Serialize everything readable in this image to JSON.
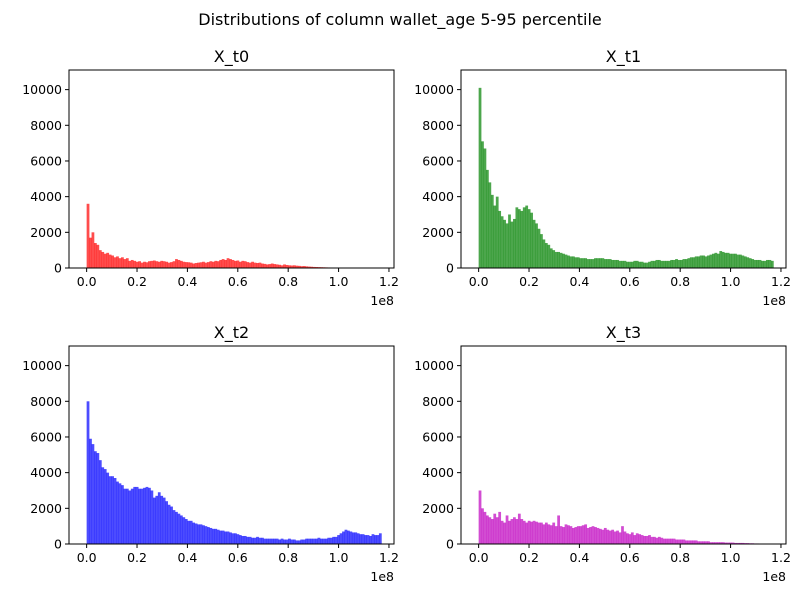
{
  "chart_data": {
    "type": "histogram",
    "title": "Distributions of column wallet_age 5-95 percentile",
    "ylim": [
      0,
      11100
    ],
    "xlim": [
      -0.07,
      1.22
    ],
    "x_offset_label": "1e8",
    "yticks": [
      0,
      2000,
      4000,
      6000,
      8000,
      10000
    ],
    "ytick_labels": [
      "0",
      "2000",
      "4000",
      "6000",
      "8000",
      "10000"
    ],
    "xticks": [
      0.0,
      0.2,
      0.4,
      0.6,
      0.8,
      1.0,
      1.2
    ],
    "xtick_labels": [
      "0.0",
      "0.2",
      "0.4",
      "0.6",
      "0.8",
      "1.0",
      "1.2"
    ],
    "bin_start": 0.0,
    "bin_end": 1.17,
    "panels": [
      {
        "title": "X_t0",
        "color": "#ff0000",
        "values": [
          3600,
          1700,
          2000,
          1400,
          1300,
          1000,
          900,
          800,
          850,
          750,
          700,
          600,
          650,
          550,
          600,
          500,
          550,
          400,
          450,
          400,
          350,
          380,
          300,
          350,
          320,
          380,
          400,
          420,
          380,
          350,
          400,
          380,
          350,
          300,
          330,
          380,
          500,
          450,
          400,
          350,
          330,
          320,
          300,
          250,
          280,
          300,
          320,
          350,
          300,
          330,
          380,
          350,
          400,
          380,
          450,
          500,
          450,
          550,
          500,
          450,
          400,
          420,
          350,
          400,
          380,
          330,
          300,
          350,
          300,
          280,
          300,
          250,
          230,
          200,
          220,
          250,
          220,
          200,
          180,
          150,
          200,
          170,
          150,
          140,
          150,
          130,
          120,
          100,
          110,
          90,
          80,
          70,
          60,
          55,
          50,
          45,
          40,
          35,
          30,
          25,
          20,
          15,
          10,
          8,
          5,
          5,
          3,
          3,
          2,
          2,
          1,
          1,
          0,
          0,
          0,
          0,
          0,
          0,
          0,
          0
        ]
      },
      {
        "title": "X_t1",
        "color": "#008000",
        "values": [
          10100,
          7100,
          6700,
          5500,
          4800,
          4100,
          3500,
          4000,
          3200,
          2900,
          2700,
          2500,
          3000,
          2600,
          2750,
          3400,
          3300,
          3200,
          3400,
          3500,
          3300,
          3100,
          2700,
          2500,
          2200,
          1900,
          1600,
          1400,
          1300,
          1100,
          1000,
          900,
          900,
          850,
          800,
          750,
          700,
          650,
          650,
          600,
          600,
          550,
          550,
          550,
          500,
          500,
          500,
          550,
          550,
          550,
          550,
          500,
          500,
          500,
          450,
          450,
          450,
          400,
          400,
          400,
          350,
          350,
          350,
          400,
          400,
          350,
          350,
          300,
          300,
          350,
          400,
          400,
          450,
          450,
          400,
          400,
          400,
          400,
          450,
          450,
          500,
          450,
          450,
          500,
          500,
          550,
          600,
          600,
          650,
          650,
          700,
          700,
          650,
          700,
          750,
          800,
          850,
          800,
          950,
          900,
          850,
          850,
          800,
          800,
          800,
          750,
          750,
          700,
          650,
          600,
          550,
          500,
          450,
          450,
          450,
          400,
          400,
          450,
          450,
          400
        ]
      },
      {
        "title": "X_t2",
        "color": "#0000ff",
        "values": [
          8000,
          5900,
          5600,
          5200,
          5100,
          4700,
          4300,
          4200,
          4000,
          3800,
          3800,
          3700,
          3500,
          3400,
          3300,
          3100,
          3100,
          3000,
          3100,
          3200,
          3200,
          3100,
          3100,
          3150,
          3200,
          3150,
          3000,
          2600,
          2700,
          2900,
          2700,
          2600,
          2400,
          2200,
          2100,
          1900,
          1800,
          1700,
          1600,
          1500,
          1400,
          1300,
          1300,
          1200,
          1150,
          1100,
          1100,
          1050,
          1000,
          950,
          900,
          850,
          850,
          800,
          750,
          750,
          700,
          700,
          650,
          600,
          600,
          550,
          500,
          450,
          450,
          400,
          400,
          350,
          350,
          400,
          350,
          350,
          300,
          300,
          300,
          300,
          300,
          300,
          250,
          300,
          250,
          250,
          300,
          250,
          250,
          200,
          200,
          250,
          250,
          300,
          300,
          300,
          300,
          300,
          350,
          300,
          300,
          300,
          350,
          350,
          400,
          400,
          500,
          600,
          700,
          800,
          750,
          700,
          650,
          650,
          600,
          550,
          550,
          500,
          500,
          450,
          550,
          500,
          500,
          600
        ]
      },
      {
        "title": "X_t3",
        "color": "#bf00bf",
        "values": [
          3000,
          2000,
          1800,
          1600,
          1500,
          1400,
          1700,
          1500,
          1800,
          1300,
          1200,
          1600,
          1300,
          1400,
          1500,
          1400,
          1700,
          1400,
          1300,
          1200,
          1300,
          1250,
          1300,
          1250,
          1200,
          1200,
          1100,
          1200,
          1100,
          1050,
          1200,
          1000,
          1600,
          1000,
          950,
          1100,
          1050,
          1000,
          900,
          950,
          1000,
          1000,
          1050,
          1100,
          900,
          950,
          1000,
          950,
          900,
          850,
          800,
          900,
          800,
          750,
          800,
          700,
          750,
          650,
          1000,
          700,
          600,
          550,
          650,
          500,
          600,
          550,
          500,
          450,
          450,
          500,
          400,
          400,
          350,
          400,
          350,
          300,
          300,
          300,
          300,
          300,
          250,
          250,
          250,
          250,
          200,
          200,
          200,
          200,
          200,
          150,
          150,
          150,
          150,
          150,
          100,
          100,
          100,
          100,
          100,
          100,
          80,
          80,
          80,
          80,
          60,
          60,
          60,
          60,
          50,
          50,
          40,
          40,
          30,
          30,
          20,
          20,
          10,
          10,
          5,
          5
        ]
      }
    ]
  }
}
